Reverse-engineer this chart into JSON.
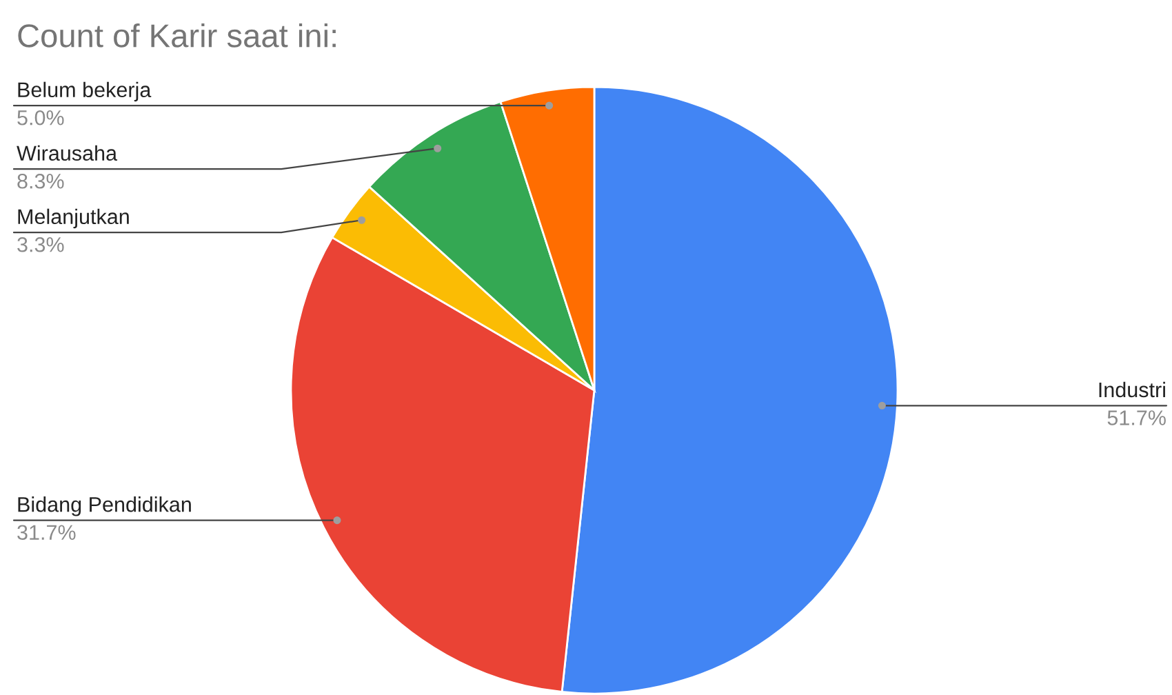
{
  "chart_data": {
    "type": "pie",
    "title": "Count of Karir saat ini:",
    "categories": [
      "Industri",
      "Bidang Pendidikan",
      "Melanjutkan",
      "Wirausaha",
      "Belum bekerja"
    ],
    "values": [
      51.7,
      31.7,
      3.3,
      8.3,
      5.0
    ],
    "value_labels": [
      "51.7%",
      "31.7%",
      "3.3%",
      "8.3%",
      "5.0%"
    ],
    "colors": [
      "#4285f4",
      "#ea4335",
      "#fbbc04",
      "#34a853",
      "#ff6d01"
    ]
  }
}
